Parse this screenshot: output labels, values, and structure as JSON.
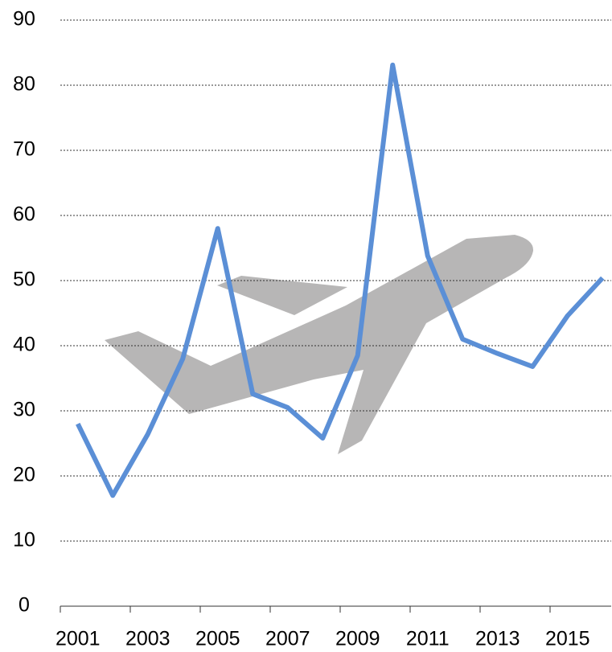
{
  "chart_data": {
    "type": "line",
    "categories": [
      "2001",
      null,
      "2003",
      null,
      "2005",
      null,
      "2007",
      null,
      "2009",
      null,
      "2011",
      null,
      "2013",
      null,
      "2015",
      null
    ],
    "series": [
      {
        "color": "#5b8fd6",
        "values": [
          28,
          17,
          26.4,
          38,
          58,
          32.6,
          30.5,
          25.8,
          38.5,
          83.1,
          53.8,
          41,
          38.8,
          36.8,
          44.6,
          50.4
        ]
      }
    ],
    "ylim": [
      0,
      90
    ],
    "yticks": [
      0,
      10,
      20,
      30,
      40,
      50,
      60,
      70,
      80,
      90
    ],
    "grid": true
  }
}
